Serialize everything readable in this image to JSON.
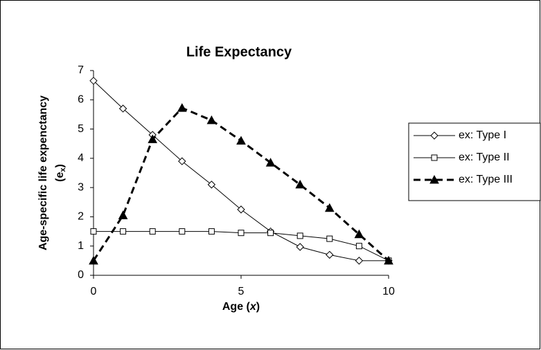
{
  "chart_data": {
    "type": "line",
    "title": "Life Expectancy",
    "xlabel": {
      "pre": "Age (",
      "italic": "x",
      "post": ")"
    },
    "ylabel": {
      "line1": "Age-specific life expenctancy",
      "pre": "(e",
      "sub": "x",
      "post": ")"
    },
    "x": [
      0,
      1,
      2,
      3,
      4,
      5,
      6,
      7,
      8,
      9,
      10
    ],
    "series": [
      {
        "name": "ex: Type I",
        "color": "#000000",
        "marker": "diamond",
        "dashed": false,
        "width": 1,
        "values": [
          6.65,
          5.7,
          4.8,
          3.9,
          3.1,
          2.25,
          1.5,
          0.97,
          0.7,
          0.5,
          0.5
        ]
      },
      {
        "name": "ex: Type II",
        "color": "#000000",
        "marker": "square",
        "dashed": false,
        "width": 1,
        "values": [
          1.5,
          1.5,
          1.5,
          1.5,
          1.5,
          1.45,
          1.45,
          1.35,
          1.25,
          1.0,
          0.5
        ]
      },
      {
        "name": "ex: Type III",
        "color": "#000000",
        "marker": "triangle",
        "dashed": true,
        "width": 3,
        "values": [
          0.5,
          2.05,
          4.65,
          5.72,
          5.3,
          4.6,
          3.85,
          3.1,
          2.3,
          1.4,
          0.5
        ]
      }
    ],
    "xlim": [
      0,
      10
    ],
    "xticks": [
      0,
      5,
      10
    ],
    "ylim": [
      0,
      7
    ],
    "yticks": [
      0,
      1,
      2,
      3,
      4,
      5,
      6,
      7
    ],
    "grid": false,
    "legend": "right"
  }
}
